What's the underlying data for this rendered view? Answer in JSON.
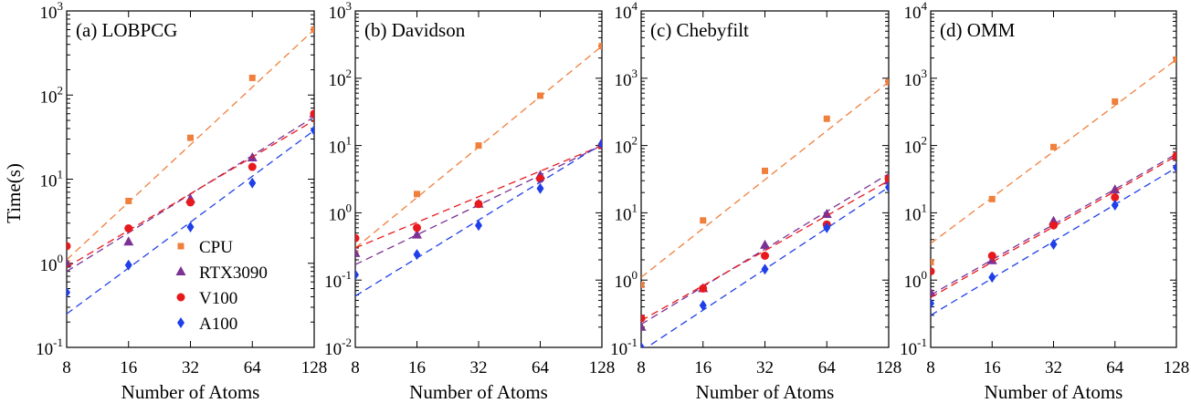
{
  "chart_data": [
    {
      "type": "scatter",
      "title": "(a) LOBPCG",
      "xlabel": "Number of Atoms",
      "ylabel": "Time(s)",
      "xscale": "log2",
      "yscale": "log10",
      "xticks": [
        8,
        16,
        32,
        64,
        128
      ],
      "ylim_exp": [
        -1,
        3
      ],
      "fit_lines": "dashed",
      "legend": "lower-left",
      "series": [
        {
          "name": "CPU",
          "marker": "square",
          "color": "#f07f3c",
          "values": [
            1.0,
            5.5,
            31,
            160,
            600
          ],
          "fit": [
            1.1,
            600
          ]
        },
        {
          "name": "RTX3090",
          "marker": "triangle",
          "color": "#7b3294",
          "values": [
            1.0,
            1.8,
            5.8,
            18,
            60
          ],
          "fit": [
            0.8,
            55
          ]
        },
        {
          "name": "V100",
          "marker": "circle",
          "color": "#e8191c",
          "values": [
            1.6,
            2.6,
            5.3,
            14,
            60
          ],
          "fit": [
            0.9,
            50
          ]
        },
        {
          "name": "A100",
          "marker": "diamond",
          "color": "#1f3fe8",
          "values": [
            0.45,
            0.95,
            2.7,
            9,
            38
          ],
          "fit": [
            0.25,
            38
          ]
        }
      ]
    },
    {
      "type": "scatter",
      "title": "(b) Davidson",
      "xlabel": "Number of Atoms",
      "xscale": "log2",
      "yscale": "log10",
      "xticks": [
        8,
        16,
        32,
        64,
        128
      ],
      "ylim_exp": [
        -2,
        3
      ],
      "fit_lines": "dashed",
      "series": [
        {
          "name": "CPU",
          "marker": "square",
          "color": "#f07f3c",
          "values": [
            0.25,
            1.9,
            10,
            55,
            300
          ],
          "fit": [
            0.3,
            300
          ]
        },
        {
          "name": "RTX3090",
          "marker": "triangle",
          "color": "#7b3294",
          "values": [
            0.25,
            0.47,
            1.35,
            3.6,
            11
          ],
          "fit": [
            0.17,
            10
          ]
        },
        {
          "name": "V100",
          "marker": "circle",
          "color": "#e8191c",
          "values": [
            0.42,
            0.6,
            1.35,
            3.2,
            10
          ],
          "fit": [
            0.3,
            10
          ]
        },
        {
          "name": "A100",
          "marker": "diamond",
          "color": "#1f3fe8",
          "values": [
            0.12,
            0.24,
            0.65,
            2.3,
            10.5
          ],
          "fit": [
            0.058,
            10.5
          ]
        }
      ]
    },
    {
      "type": "scatter",
      "title": "(c) Chebyfilt",
      "xlabel": "Number of Atoms",
      "xscale": "log2",
      "yscale": "log10",
      "xticks": [
        8,
        16,
        32,
        64,
        128
      ],
      "ylim_exp": [
        -1,
        4
      ],
      "fit_lines": "dashed",
      "series": [
        {
          "name": "CPU",
          "marker": "square",
          "color": "#f07f3c",
          "values": [
            0.85,
            7.7,
            42,
            250,
            880
          ],
          "fit": [
            1.1,
            880
          ]
        },
        {
          "name": "RTX3090",
          "marker": "triangle",
          "color": "#7b3294",
          "values": [
            0.2,
            0.75,
            3.3,
            9.5,
            30
          ],
          "fit": [
            0.22,
            38
          ]
        },
        {
          "name": "V100",
          "marker": "circle",
          "color": "#e8191c",
          "values": [
            0.27,
            0.75,
            2.3,
            6.7,
            32
          ],
          "fit": [
            0.25,
            30
          ]
        },
        {
          "name": "A100",
          "marker": "diamond",
          "color": "#1f3fe8",
          "values": [
            0.1,
            0.42,
            1.45,
            6.0,
            24
          ],
          "fit": [
            0.088,
            24
          ]
        }
      ]
    },
    {
      "type": "scatter",
      "title": "(d) OMM",
      "xlabel": "Number of Atoms",
      "xscale": "log2",
      "yscale": "log10",
      "xticks": [
        8,
        16,
        32,
        64,
        128
      ],
      "ylim_exp": [
        -1,
        4
      ],
      "fit_lines": "dashed",
      "series": [
        {
          "name": "CPU",
          "marker": "square",
          "color": "#f07f3c",
          "values": [
            1.85,
            16,
            95,
            450,
            1900
          ],
          "fit": [
            3.5,
            1900
          ]
        },
        {
          "name": "RTX3090",
          "marker": "triangle",
          "color": "#7b3294",
          "values": [
            0.65,
            1.95,
            7.5,
            22,
            70
          ],
          "fit": [
            0.6,
            75
          ]
        },
        {
          "name": "V100",
          "marker": "circle",
          "color": "#e8191c",
          "values": [
            1.35,
            2.3,
            6.5,
            17,
            70
          ],
          "fit": [
            0.55,
            70
          ]
        },
        {
          "name": "A100",
          "marker": "diamond",
          "color": "#1f3fe8",
          "values": [
            0.45,
            1.1,
            3.4,
            13,
            47
          ],
          "fit": [
            0.3,
            47
          ]
        }
      ]
    }
  ]
}
